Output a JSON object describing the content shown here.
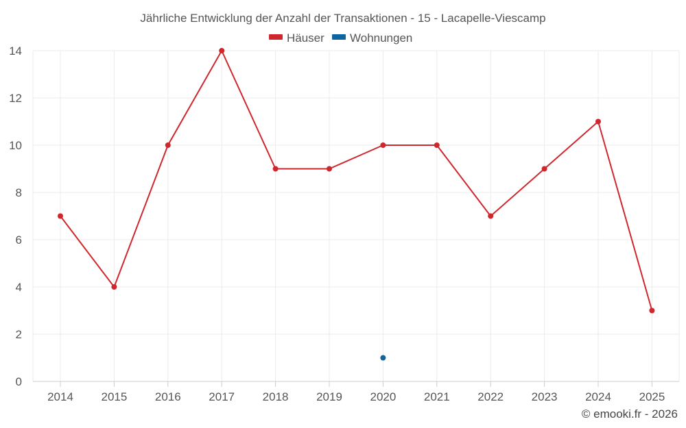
{
  "chart_data": {
    "type": "line",
    "title": "Jährliche Entwicklung der Anzahl der Transaktionen - 15 - Lacapelle-Viescamp",
    "categories": [
      "2014",
      "2015",
      "2016",
      "2017",
      "2018",
      "2019",
      "2020",
      "2021",
      "2022",
      "2023",
      "2024",
      "2025"
    ],
    "series": [
      {
        "name": "Häuser",
        "color": "#d0262d",
        "values": [
          7,
          4,
          10,
          14,
          9,
          9,
          10,
          10,
          7,
          9,
          11,
          3
        ]
      },
      {
        "name": "Wohnungen",
        "color": "#0e64a0",
        "values": [
          null,
          null,
          null,
          null,
          null,
          null,
          1,
          null,
          null,
          null,
          null,
          null
        ]
      }
    ],
    "ylim": [
      0,
      14
    ],
    "yticks": [
      0,
      2,
      4,
      6,
      8,
      10,
      12,
      14
    ],
    "grid": true,
    "legend": "top-center",
    "xlabel": "",
    "ylabel": ""
  },
  "credit": "© emooki.fr - 2026"
}
